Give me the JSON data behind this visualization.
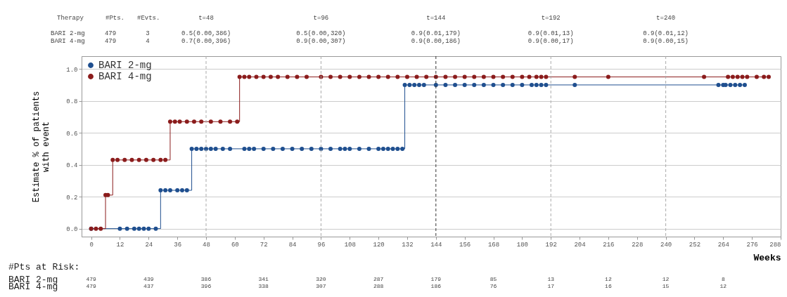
{
  "chart_data": {
    "type": "step",
    "xlabel": "Weeks",
    "ylabel": "Estimate % of patients with event",
    "xlim": [
      -4,
      288
    ],
    "xticks": [
      0,
      12,
      24,
      36,
      48,
      60,
      72,
      84,
      96,
      108,
      120,
      132,
      144,
      156,
      168,
      180,
      192,
      204,
      216,
      228,
      240,
      252,
      264,
      276,
      288
    ],
    "ylim": [
      -0.05,
      1.08
    ],
    "yticks": [
      {
        "value": 0,
        "label": "0.0"
      },
      {
        "value": 0.2,
        "label": "0.2"
      },
      {
        "value": 0.4,
        "label": "0.4"
      },
      {
        "value": 0.6,
        "label": "0.6"
      },
      {
        "value": 0.8,
        "label": "0.8"
      },
      {
        "value": 1,
        "label": "1.0"
      }
    ],
    "grid": "y",
    "legend": "top left",
    "marker": "circle",
    "line_style": "solid",
    "series": [
      {
        "name": "BARI 2-mg",
        "color": "#1f4f8f",
        "x": [
          0,
          12,
          15,
          18,
          20,
          22,
          24,
          27,
          29,
          31,
          33,
          36,
          38,
          40,
          42,
          44,
          46,
          48,
          50,
          52,
          55,
          58,
          64,
          66,
          68,
          72,
          76,
          80,
          84,
          88,
          92,
          96,
          100,
          104,
          106,
          108,
          112,
          116,
          120,
          122,
          124,
          126,
          128,
          130,
          131,
          133,
          135,
          137,
          139,
          144,
          148,
          152,
          156,
          160,
          164,
          168,
          172,
          176,
          180,
          184,
          186,
          188,
          190,
          202,
          262,
          264,
          265,
          267,
          269,
          271,
          273
        ],
        "values": [
          0,
          0,
          0,
          0,
          0,
          0,
          0,
          0,
          0.24,
          0.24,
          0.24,
          0.24,
          0.24,
          0.24,
          0.5,
          0.5,
          0.5,
          0.5,
          0.5,
          0.5,
          0.5,
          0.5,
          0.5,
          0.5,
          0.5,
          0.5,
          0.5,
          0.5,
          0.5,
          0.5,
          0.5,
          0.5,
          0.5,
          0.5,
          0.5,
          0.5,
          0.5,
          0.5,
          0.5,
          0.5,
          0.5,
          0.5,
          0.5,
          0.5,
          0.9,
          0.9,
          0.9,
          0.9,
          0.9,
          0.9,
          0.9,
          0.9,
          0.9,
          0.9,
          0.9,
          0.9,
          0.9,
          0.9,
          0.9,
          0.9,
          0.9,
          0.9,
          0.9,
          0.9,
          0.9,
          0.9,
          0.9,
          0.9,
          0.9,
          0.9,
          0.9
        ]
      },
      {
        "name": "BARI 4-mg",
        "color": "#8b1c1c",
        "x": [
          0,
          2,
          4,
          6,
          7,
          9,
          11,
          14,
          17,
          20,
          23,
          26,
          29,
          31,
          33,
          35,
          37,
          40,
          43,
          46,
          50,
          54,
          58,
          61,
          62,
          64,
          66,
          69,
          72,
          75,
          78,
          82,
          86,
          90,
          96,
          100,
          104,
          108,
          112,
          116,
          120,
          124,
          128,
          132,
          136,
          140,
          144,
          148,
          152,
          156,
          160,
          164,
          168,
          172,
          176,
          180,
          183,
          186,
          188,
          190,
          202,
          216,
          256,
          266,
          268,
          270,
          272,
          274,
          278,
          281,
          283
        ],
        "values": [
          0,
          0,
          0,
          0.21,
          0.21,
          0.43,
          0.43,
          0.43,
          0.43,
          0.43,
          0.43,
          0.43,
          0.43,
          0.43,
          0.67,
          0.67,
          0.67,
          0.67,
          0.67,
          0.67,
          0.67,
          0.67,
          0.67,
          0.67,
          0.95,
          0.95,
          0.95,
          0.95,
          0.95,
          0.95,
          0.95,
          0.95,
          0.95,
          0.95,
          0.95,
          0.95,
          0.95,
          0.95,
          0.95,
          0.95,
          0.95,
          0.95,
          0.95,
          0.95,
          0.95,
          0.95,
          0.95,
          0.95,
          0.95,
          0.95,
          0.95,
          0.95,
          0.95,
          0.95,
          0.95,
          0.95,
          0.95,
          0.95,
          0.95,
          0.95,
          0.95,
          0.95,
          0.95,
          0.95,
          0.95,
          0.95,
          0.95,
          0.95,
          0.95,
          0.95,
          0.95
        ]
      }
    ],
    "ref_lines": [
      {
        "axis": "x",
        "value": 48,
        "color": "#aaaaaa",
        "line_style": "dashed"
      },
      {
        "axis": "x",
        "value": 96,
        "color": "#aaaaaa",
        "line_style": "dashed"
      },
      {
        "axis": "x",
        "value": 144,
        "color": "#333333",
        "line_style": "dashed"
      },
      {
        "axis": "x",
        "value": 192,
        "color": "#aaaaaa",
        "line_style": "dashed"
      },
      {
        "axis": "x",
        "value": 240,
        "color": "#aaaaaa",
        "line_style": "dashed"
      }
    ],
    "annotations": [
      "Therapy",
      "#Pts.",
      "#Evts.",
      "t=48",
      "t=96",
      "t=144",
      "t=192",
      "t=240",
      "BARI 2-mg",
      "479",
      "3",
      "BARI 4-mg",
      "479",
      "4",
      "0.5(0.00,386)",
      "0.5(0.00,320)",
      "0.9(0.01,179)",
      "0.9(0.01,13)",
      "0.9(0.01,12)",
      "0.7(0.00,396)",
      "0.9(0.00,307)",
      "0.9(0.00,186)",
      "0.9(0.00,17)",
      "0.9(0.00,15)",
      "#Pts at Risk:",
      "BARI 2-mg",
      "BARI 4-mg",
      "479",
      "439",
      "386",
      "341",
      "320",
      "287",
      "179",
      "85",
      "13",
      "12",
      "12",
      "8",
      "479",
      "437",
      "396",
      "338",
      "307",
      "288",
      "186",
      "76",
      "17",
      "16",
      "15",
      "12"
    ]
  }
}
